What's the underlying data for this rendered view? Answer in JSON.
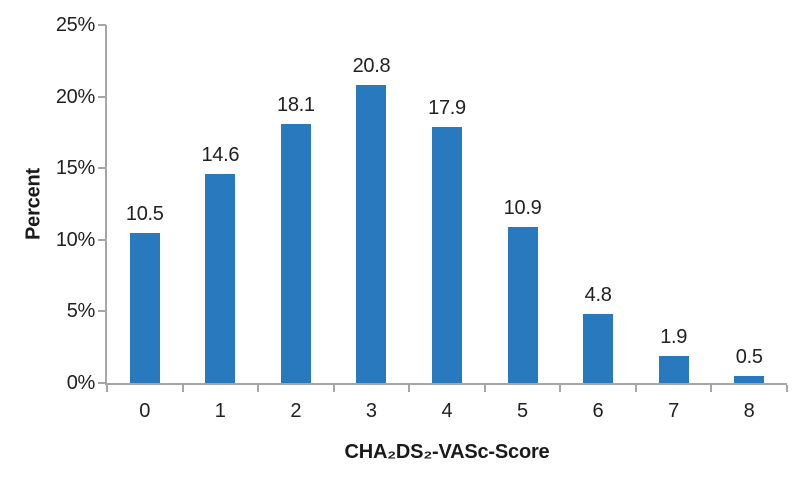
{
  "chart_data": {
    "type": "bar",
    "title": "",
    "categories": [
      "0",
      "1",
      "2",
      "3",
      "4",
      "5",
      "6",
      "7",
      "8"
    ],
    "values": [
      10.5,
      14.6,
      18.1,
      20.8,
      17.9,
      10.9,
      4.8,
      1.9,
      0.5
    ],
    "value_labels": [
      "10.5",
      "14.6",
      "18.1",
      "20.8",
      "17.9",
      "10.9",
      "4.8",
      "1.9",
      "0.5"
    ],
    "xlabel": "CHA₂DS₂-VASc-Score",
    "ylabel": "Percent",
    "ylim": [
      0,
      25
    ],
    "yticks": [
      {
        "value": 0,
        "label": "0%"
      },
      {
        "value": 5,
        "label": "5%"
      },
      {
        "value": 10,
        "label": "10%"
      },
      {
        "value": 15,
        "label": "15%"
      },
      {
        "value": 20,
        "label": "20%"
      },
      {
        "value": 25,
        "label": "25%"
      }
    ],
    "grid": false,
    "legend": "none",
    "colors": {
      "bar": "#2879BD",
      "axis": "#A6A6A6",
      "text": "#212121"
    }
  }
}
